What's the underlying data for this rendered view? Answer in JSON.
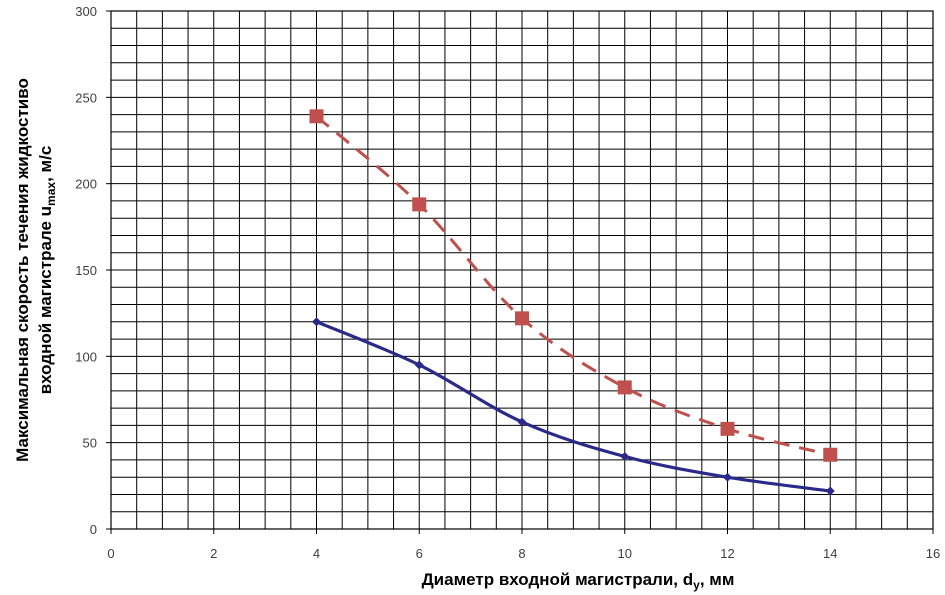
{
  "chart_data": {
    "type": "line",
    "title": "",
    "xlabel": {
      "main": "Диаметр входной магистрали, d",
      "sub": "у",
      "tail": ", мм"
    },
    "ylabel": {
      "line1": "Максимальная скорость течения жидкостиво",
      "line2_main": "входной магистрале u",
      "line2_sub": "max",
      "line2_tail": ", м/с"
    },
    "xlim": [
      0,
      16
    ],
    "ylim": [
      0,
      300
    ],
    "x_ticks": [
      0,
      2,
      4,
      6,
      8,
      10,
      12,
      14,
      16
    ],
    "y_ticks": [
      0,
      50,
      100,
      150,
      200,
      250,
      300
    ],
    "grid": true,
    "legend": "none",
    "series": [
      {
        "x": [
          4,
          6,
          8,
          10,
          12,
          14
        ],
        "values": [
          120,
          95,
          62,
          42,
          30,
          22
        ],
        "color": "#2a2a8a",
        "line_style": "solid",
        "marker": "diamond"
      },
      {
        "x": [
          4,
          6,
          8,
          10,
          12,
          14
        ],
        "values": [
          239,
          188,
          122,
          82,
          58,
          43
        ],
        "color": "#c0504d",
        "line_style": "dashed",
        "marker": "square"
      }
    ]
  }
}
